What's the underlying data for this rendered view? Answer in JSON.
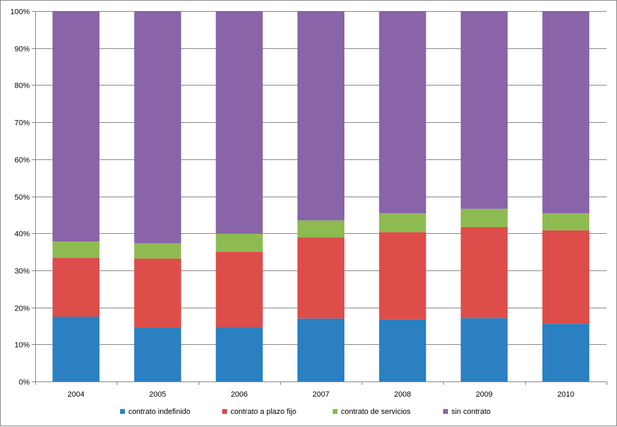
{
  "chart_data": {
    "type": "bar",
    "stacked": true,
    "percent_stacked": true,
    "categories": [
      "2004",
      "2005",
      "2006",
      "2007",
      "2008",
      "2009",
      "2010"
    ],
    "series": [
      {
        "name": "contrato indefinido",
        "color": "#2a80c1",
        "values": [
          17.5,
          14.5,
          14.7,
          17.0,
          16.8,
          17.1,
          15.6
        ]
      },
      {
        "name": "contrato a plazo fijo",
        "color": "#dd4d4a",
        "values": [
          15.9,
          18.7,
          20.3,
          21.9,
          23.5,
          24.6,
          25.2
        ]
      },
      {
        "name": "contrato de servicios",
        "color": "#8dbb51",
        "values": [
          4.4,
          4.1,
          4.9,
          4.6,
          5.1,
          4.9,
          4.6
        ]
      },
      {
        "name": "sin contrato",
        "color": "#8964a8",
        "values": [
          62.2,
          62.7,
          60.1,
          56.5,
          54.6,
          53.4,
          54.6
        ]
      }
    ],
    "y_ticks": [
      "0%",
      "10%",
      "20%",
      "30%",
      "40%",
      "50%",
      "60%",
      "70%",
      "80%",
      "90%",
      "100%"
    ],
    "ylim": [
      0,
      100
    ],
    "grid": true,
    "legend_position": "bottom"
  }
}
